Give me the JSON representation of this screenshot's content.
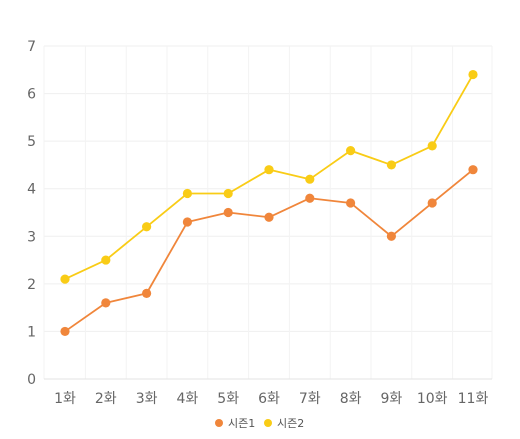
{
  "chart_data": {
    "type": "line",
    "categories": [
      "1화",
      "2화",
      "3화",
      "4화",
      "5화",
      "6화",
      "7화",
      "8화",
      "9화",
      "10화",
      "11화"
    ],
    "series": [
      {
        "name": "시즌1",
        "color": "#f0863b",
        "values": [
          1.0,
          1.6,
          1.8,
          3.3,
          3.5,
          3.4,
          3.8,
          3.7,
          3.0,
          3.7,
          4.4
        ]
      },
      {
        "name": "시즌2",
        "color": "#f9cc16",
        "values": [
          2.1,
          2.5,
          3.2,
          3.9,
          3.9,
          4.4,
          4.2,
          4.8,
          4.5,
          4.9,
          6.4
        ]
      }
    ],
    "yticks": [
      0,
      1,
      2,
      3,
      4,
      5,
      6,
      7
    ],
    "ylim": [
      0,
      7
    ],
    "grid": true,
    "legend_position": "bottom-center"
  }
}
